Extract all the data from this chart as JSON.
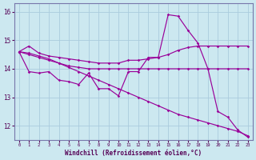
{
  "xlabel": "Windchill (Refroidissement éolien,°C)",
  "hours": [
    0,
    1,
    2,
    3,
    4,
    5,
    6,
    7,
    8,
    9,
    10,
    11,
    12,
    13,
    14,
    15,
    16,
    17,
    18,
    19,
    20,
    21,
    22,
    23
  ],
  "line_a": [
    14.6,
    14.8,
    14.55,
    14.45,
    14.4,
    14.35,
    14.3,
    14.25,
    14.2,
    14.2,
    14.2,
    14.3,
    14.3,
    14.35,
    14.4,
    14.5,
    14.65,
    14.75,
    14.8,
    14.8,
    14.8,
    14.8,
    14.8,
    14.8
  ],
  "line_b": [
    14.6,
    13.9,
    13.85,
    13.9,
    13.6,
    13.55,
    13.45,
    13.85,
    13.3,
    13.3,
    13.05,
    13.9,
    13.9,
    14.4,
    14.4,
    15.9,
    15.85,
    15.35,
    14.9,
    14.0,
    12.5,
    12.3,
    11.85,
    11.6
  ],
  "line_c": [
    14.6,
    14.5,
    14.4,
    14.3,
    14.2,
    14.1,
    14.05,
    14.0,
    14.0,
    14.0,
    14.0,
    14.0,
    14.0,
    14.0,
    14.0,
    14.0,
    14.0,
    14.0,
    14.0,
    14.0,
    14.0,
    14.0,
    14.0,
    14.0
  ],
  "line_d": [
    14.6,
    14.55,
    14.45,
    14.35,
    14.2,
    14.05,
    13.9,
    13.75,
    13.6,
    13.45,
    13.3,
    13.15,
    13.0,
    12.85,
    12.7,
    12.55,
    12.4,
    12.3,
    12.2,
    12.1,
    12.0,
    11.9,
    11.8,
    11.65
  ],
  "line_color": "#990099",
  "bg_color": "#cce8f0",
  "grid_color": "#aaccdd",
  "ylim": [
    11.5,
    16.3
  ],
  "yticks": [
    12,
    13,
    14,
    15,
    16
  ],
  "xticks": [
    0,
    1,
    2,
    3,
    4,
    5,
    6,
    7,
    8,
    9,
    10,
    11,
    12,
    13,
    14,
    15,
    16,
    17,
    18,
    19,
    20,
    21,
    22,
    23
  ],
  "spine_color": "#7777aa",
  "tick_color": "#550055",
  "xlabel_color": "#550055"
}
